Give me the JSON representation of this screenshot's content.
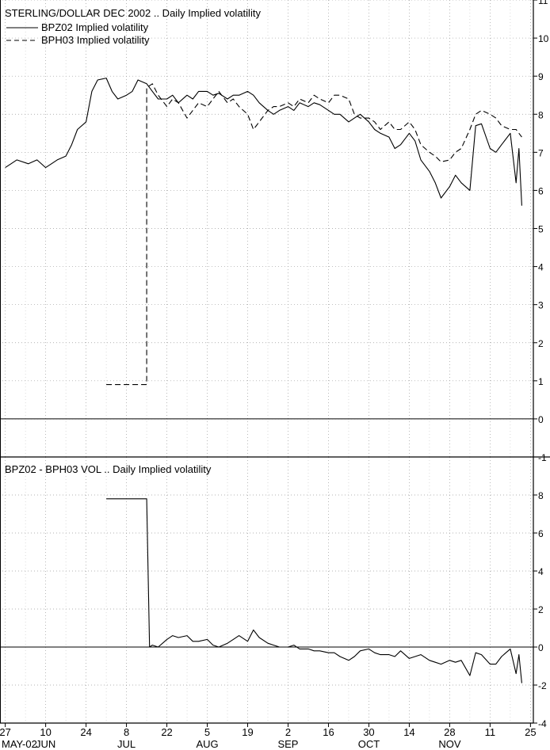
{
  "chart_data": [
    {
      "type": "line",
      "title": "STERLING/DOLLAR DEC 2002 .. Daily Implied volatility",
      "ylim": [
        -1,
        11
      ],
      "yticks": [
        -1,
        0,
        1,
        2,
        3,
        4,
        5,
        6,
        7,
        8,
        9,
        10,
        11
      ],
      "grid": true,
      "legend_position": "top-left",
      "series": [
        {
          "name": "BPZ02 Implied volatility",
          "style": "solid",
          "points": [
            [
              "2002-05-27",
              6.6
            ],
            [
              "2002-05-29",
              6.7
            ],
            [
              "2002-05-31",
              6.8
            ],
            [
              "2002-06-04",
              6.7
            ],
            [
              "2002-06-07",
              6.8
            ],
            [
              "2002-06-10",
              6.6
            ],
            [
              "2002-06-12",
              6.7
            ],
            [
              "2002-06-14",
              6.8
            ],
            [
              "2002-06-17",
              6.9
            ],
            [
              "2002-06-19",
              7.2
            ],
            [
              "2002-06-21",
              7.6
            ],
            [
              "2002-06-24",
              7.8
            ],
            [
              "2002-06-26",
              8.6
            ],
            [
              "2002-06-28",
              8.9
            ],
            [
              "2002-07-01",
              8.95
            ],
            [
              "2002-07-03",
              8.6
            ],
            [
              "2002-07-05",
              8.4
            ],
            [
              "2002-07-08",
              8.5
            ],
            [
              "2002-07-10",
              8.6
            ],
            [
              "2002-07-12",
              8.9
            ],
            [
              "2002-07-15",
              8.8
            ],
            [
              "2002-07-17",
              8.6
            ],
            [
              "2002-07-19",
              8.4
            ],
            [
              "2002-07-22",
              8.4
            ],
            [
              "2002-07-24",
              8.5
            ],
            [
              "2002-07-26",
              8.3
            ],
            [
              "2002-07-29",
              8.5
            ],
            [
              "2002-07-31",
              8.4
            ],
            [
              "2002-08-02",
              8.6
            ],
            [
              "2002-08-05",
              8.6
            ],
            [
              "2002-08-07",
              8.5
            ],
            [
              "2002-08-09",
              8.55
            ],
            [
              "2002-08-12",
              8.4
            ],
            [
              "2002-08-14",
              8.5
            ],
            [
              "2002-08-16",
              8.5
            ],
            [
              "2002-08-19",
              8.6
            ],
            [
              "2002-08-21",
              8.5
            ],
            [
              "2002-08-23",
              8.3
            ],
            [
              "2002-08-26",
              8.1
            ],
            [
              "2002-08-28",
              8.0
            ],
            [
              "2002-08-30",
              8.1
            ],
            [
              "2002-09-02",
              8.2
            ],
            [
              "2002-09-04",
              8.1
            ],
            [
              "2002-09-06",
              8.3
            ],
            [
              "2002-09-09",
              8.2
            ],
            [
              "2002-09-11",
              8.3
            ],
            [
              "2002-09-13",
              8.25
            ],
            [
              "2002-09-16",
              8.1
            ],
            [
              "2002-09-18",
              8.0
            ],
            [
              "2002-09-20",
              8.0
            ],
            [
              "2002-09-23",
              7.8
            ],
            [
              "2002-09-25",
              7.9
            ],
            [
              "2002-09-27",
              8.0
            ],
            [
              "2002-09-30",
              7.8
            ],
            [
              "2002-10-02",
              7.6
            ],
            [
              "2002-10-04",
              7.5
            ],
            [
              "2002-10-07",
              7.4
            ],
            [
              "2002-10-09",
              7.1
            ],
            [
              "2002-10-11",
              7.2
            ],
            [
              "2002-10-14",
              7.5
            ],
            [
              "2002-10-16",
              7.3
            ],
            [
              "2002-10-18",
              6.8
            ],
            [
              "2002-10-21",
              6.5
            ],
            [
              "2002-10-23",
              6.2
            ],
            [
              "2002-10-25",
              5.8
            ],
            [
              "2002-10-28",
              6.1
            ],
            [
              "2002-10-30",
              6.4
            ],
            [
              "2002-11-01",
              6.2
            ],
            [
              "2002-11-04",
              6.0
            ],
            [
              "2002-11-06",
              7.7
            ],
            [
              "2002-11-08",
              7.75
            ],
            [
              "2002-11-11",
              7.1
            ],
            [
              "2002-11-13",
              7.0
            ],
            [
              "2002-11-15",
              7.2
            ],
            [
              "2002-11-18",
              7.5
            ],
            [
              "2002-11-20",
              6.2
            ],
            [
              "2002-11-21",
              7.1
            ],
            [
              "2002-11-22",
              5.6
            ]
          ]
        },
        {
          "name": "BPH03 Implied volatility",
          "style": "dashed",
          "points": [
            [
              "2002-07-01",
              0.9
            ],
            [
              "2002-07-15",
              0.9
            ],
            [
              "2002-07-15",
              8.7
            ],
            [
              "2002-07-17",
              8.8
            ],
            [
              "2002-07-19",
              8.5
            ],
            [
              "2002-07-22",
              8.2
            ],
            [
              "2002-07-24",
              8.4
            ],
            [
              "2002-07-26",
              8.3
            ],
            [
              "2002-07-29",
              7.9
            ],
            [
              "2002-07-31",
              8.1
            ],
            [
              "2002-08-02",
              8.3
            ],
            [
              "2002-08-05",
              8.2
            ],
            [
              "2002-08-07",
              8.4
            ],
            [
              "2002-08-09",
              8.6
            ],
            [
              "2002-08-12",
              8.3
            ],
            [
              "2002-08-14",
              8.4
            ],
            [
              "2002-08-16",
              8.2
            ],
            [
              "2002-08-19",
              8.0
            ],
            [
              "2002-08-21",
              7.6
            ],
            [
              "2002-08-23",
              7.8
            ],
            [
              "2002-08-26",
              8.1
            ],
            [
              "2002-08-28",
              8.2
            ],
            [
              "2002-08-30",
              8.2
            ],
            [
              "2002-09-02",
              8.3
            ],
            [
              "2002-09-04",
              8.2
            ],
            [
              "2002-09-06",
              8.4
            ],
            [
              "2002-09-09",
              8.3
            ],
            [
              "2002-09-11",
              8.5
            ],
            [
              "2002-09-13",
              8.4
            ],
            [
              "2002-09-16",
              8.3
            ],
            [
              "2002-09-18",
              8.5
            ],
            [
              "2002-09-20",
              8.5
            ],
            [
              "2002-09-23",
              8.4
            ],
            [
              "2002-09-25",
              8.0
            ],
            [
              "2002-09-27",
              7.9
            ],
            [
              "2002-09-30",
              7.9
            ],
            [
              "2002-10-02",
              7.8
            ],
            [
              "2002-10-04",
              7.6
            ],
            [
              "2002-10-07",
              7.8
            ],
            [
              "2002-10-09",
              7.6
            ],
            [
              "2002-10-11",
              7.6
            ],
            [
              "2002-10-14",
              7.8
            ],
            [
              "2002-10-16",
              7.6
            ],
            [
              "2002-10-18",
              7.2
            ],
            [
              "2002-10-21",
              7.0
            ],
            [
              "2002-10-23",
              6.9
            ],
            [
              "2002-10-25",
              6.75
            ],
            [
              "2002-10-28",
              6.8
            ],
            [
              "2002-10-30",
              7.0
            ],
            [
              "2002-11-01",
              7.1
            ],
            [
              "2002-11-04",
              7.6
            ],
            [
              "2002-11-06",
              8.0
            ],
            [
              "2002-11-08",
              8.1
            ],
            [
              "2002-11-11",
              8.0
            ],
            [
              "2002-11-13",
              7.9
            ],
            [
              "2002-11-15",
              7.7
            ],
            [
              "2002-11-18",
              7.6
            ],
            [
              "2002-11-20",
              7.6
            ],
            [
              "2002-11-21",
              7.5
            ],
            [
              "2002-11-22",
              7.4
            ]
          ]
        }
      ]
    },
    {
      "type": "line",
      "title": "BPZ02 - BPH03 VOL .. Daily Implied volatility",
      "ylim": [
        -4,
        10
      ],
      "yticks": [
        -4,
        -2,
        0,
        2,
        4,
        6,
        8
      ],
      "grid": true,
      "series": [
        {
          "style": "solid",
          "points": [
            [
              "2002-07-01",
              7.8
            ],
            [
              "2002-07-15",
              7.8
            ],
            [
              "2002-07-16",
              0.0
            ],
            [
              "2002-07-17",
              0.1
            ],
            [
              "2002-07-19",
              0.0
            ],
            [
              "2002-07-22",
              0.4
            ],
            [
              "2002-07-24",
              0.6
            ],
            [
              "2002-07-26",
              0.5
            ],
            [
              "2002-07-29",
              0.6
            ],
            [
              "2002-07-31",
              0.3
            ],
            [
              "2002-08-02",
              0.3
            ],
            [
              "2002-08-05",
              0.4
            ],
            [
              "2002-08-07",
              0.1
            ],
            [
              "2002-08-09",
              0.0
            ],
            [
              "2002-08-12",
              0.2
            ],
            [
              "2002-08-14",
              0.4
            ],
            [
              "2002-08-16",
              0.6
            ],
            [
              "2002-08-19",
              0.3
            ],
            [
              "2002-08-21",
              0.9
            ],
            [
              "2002-08-23",
              0.5
            ],
            [
              "2002-08-26",
              0.2
            ],
            [
              "2002-08-28",
              0.1
            ],
            [
              "2002-08-30",
              0.0
            ],
            [
              "2002-09-02",
              0.0
            ],
            [
              "2002-09-04",
              0.1
            ],
            [
              "2002-09-06",
              -0.1
            ],
            [
              "2002-09-09",
              -0.1
            ],
            [
              "2002-09-11",
              -0.2
            ],
            [
              "2002-09-13",
              -0.2
            ],
            [
              "2002-09-16",
              -0.3
            ],
            [
              "2002-09-18",
              -0.3
            ],
            [
              "2002-09-20",
              -0.5
            ],
            [
              "2002-09-23",
              -0.7
            ],
            [
              "2002-09-25",
              -0.5
            ],
            [
              "2002-09-27",
              -0.2
            ],
            [
              "2002-09-30",
              -0.1
            ],
            [
              "2002-10-02",
              -0.3
            ],
            [
              "2002-10-04",
              -0.4
            ],
            [
              "2002-10-07",
              -0.4
            ],
            [
              "2002-10-09",
              -0.5
            ],
            [
              "2002-10-11",
              -0.2
            ],
            [
              "2002-10-14",
              -0.6
            ],
            [
              "2002-10-16",
              -0.5
            ],
            [
              "2002-10-18",
              -0.4
            ],
            [
              "2002-10-21",
              -0.7
            ],
            [
              "2002-10-23",
              -0.8
            ],
            [
              "2002-10-25",
              -0.9
            ],
            [
              "2002-10-28",
              -0.7
            ],
            [
              "2002-10-30",
              -0.8
            ],
            [
              "2002-11-01",
              -0.7
            ],
            [
              "2002-11-04",
              -1.5
            ],
            [
              "2002-11-06",
              -0.3
            ],
            [
              "2002-11-08",
              -0.4
            ],
            [
              "2002-11-11",
              -0.9
            ],
            [
              "2002-11-13",
              -0.9
            ],
            [
              "2002-11-15",
              -0.5
            ],
            [
              "2002-11-18",
              -0.1
            ],
            [
              "2002-11-20",
              -1.4
            ],
            [
              "2002-11-21",
              -0.4
            ],
            [
              "2002-11-22",
              -1.9
            ]
          ]
        }
      ]
    }
  ],
  "x_axis": {
    "range": [
      "2002-05-26",
      "2002-11-26"
    ],
    "ticks": [
      {
        "date": "2002-05-27",
        "label": "27",
        "month": "MAY-02"
      },
      {
        "date": "2002-06-10",
        "label": "10",
        "month": "JUN"
      },
      {
        "date": "2002-06-24",
        "label": "24",
        "month": ""
      },
      {
        "date": "2002-07-08",
        "label": "8",
        "month": "JUL"
      },
      {
        "date": "2002-07-22",
        "label": "22",
        "month": ""
      },
      {
        "date": "2002-08-05",
        "label": "5",
        "month": "AUG"
      },
      {
        "date": "2002-08-19",
        "label": "19",
        "month": ""
      },
      {
        "date": "2002-09-02",
        "label": "2",
        "month": "SEP"
      },
      {
        "date": "2002-09-16",
        "label": "16",
        "month": ""
      },
      {
        "date": "2002-09-30",
        "label": "30",
        "month": "OCT"
      },
      {
        "date": "2002-10-14",
        "label": "14",
        "month": ""
      },
      {
        "date": "2002-10-28",
        "label": "28",
        "month": "NOV"
      },
      {
        "date": "2002-11-11",
        "label": "11",
        "month": ""
      },
      {
        "date": "2002-11-25",
        "label": "25",
        "month": ""
      }
    ]
  }
}
